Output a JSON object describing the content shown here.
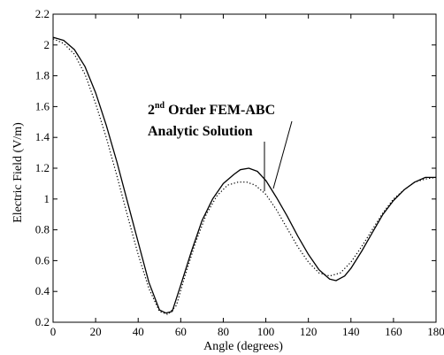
{
  "chart_data": {
    "type": "line",
    "title": "",
    "xlabel": "Angle (degrees)",
    "ylabel": "Electric Field (V/m)",
    "xlim": [
      0,
      180
    ],
    "ylim": [
      0.2,
      2.2
    ],
    "xticks": [
      0,
      20,
      40,
      60,
      80,
      100,
      120,
      140,
      160,
      180
    ],
    "yticks": [
      0.2,
      0.4,
      0.6,
      0.8,
      1,
      1.2,
      1.4,
      1.6,
      1.8,
      2,
      2.2
    ],
    "grid": false,
    "legend": "none",
    "series": [
      {
        "style": "solid",
        "color": "#000000",
        "x": [
          0,
          5,
          10,
          15,
          20,
          25,
          30,
          35,
          40,
          45,
          50,
          53,
          56,
          60,
          65,
          70,
          75,
          80,
          85,
          88,
          92,
          96,
          100,
          105,
          110,
          115,
          120,
          125,
          130,
          133,
          137,
          140,
          145,
          150,
          155,
          160,
          165,
          170,
          175,
          180
        ],
        "y": [
          2.05,
          2.03,
          1.97,
          1.86,
          1.69,
          1.48,
          1.24,
          0.98,
          0.72,
          0.46,
          0.28,
          0.26,
          0.27,
          0.44,
          0.66,
          0.86,
          1.0,
          1.1,
          1.16,
          1.19,
          1.2,
          1.18,
          1.12,
          1.01,
          0.89,
          0.76,
          0.64,
          0.54,
          0.48,
          0.47,
          0.5,
          0.55,
          0.66,
          0.78,
          0.9,
          0.99,
          1.06,
          1.11,
          1.14,
          1.14
        ]
      },
      {
        "style": "dotted",
        "color": "#000000",
        "x": [
          0,
          5,
          10,
          15,
          20,
          25,
          30,
          35,
          40,
          45,
          50,
          54,
          58,
          62,
          67,
          72,
          77,
          82,
          87,
          91,
          95,
          100,
          105,
          110,
          115,
          120,
          125,
          130,
          135,
          140,
          145,
          150,
          155,
          160,
          165,
          170,
          175,
          180
        ],
        "y": [
          2.04,
          2.01,
          1.94,
          1.81,
          1.62,
          1.4,
          1.15,
          0.89,
          0.64,
          0.42,
          0.27,
          0.25,
          0.31,
          0.5,
          0.72,
          0.9,
          1.02,
          1.09,
          1.11,
          1.11,
          1.09,
          1.03,
          0.93,
          0.81,
          0.69,
          0.59,
          0.52,
          0.5,
          0.52,
          0.59,
          0.69,
          0.8,
          0.91,
          1.0,
          1.06,
          1.11,
          1.13,
          1.14
        ]
      }
    ],
    "annotations": {
      "fem_prefix": "2",
      "fem_sup": "nd",
      "fem_suffix": " Order FEM-ABC",
      "analytic": "Analytic Solution"
    }
  }
}
